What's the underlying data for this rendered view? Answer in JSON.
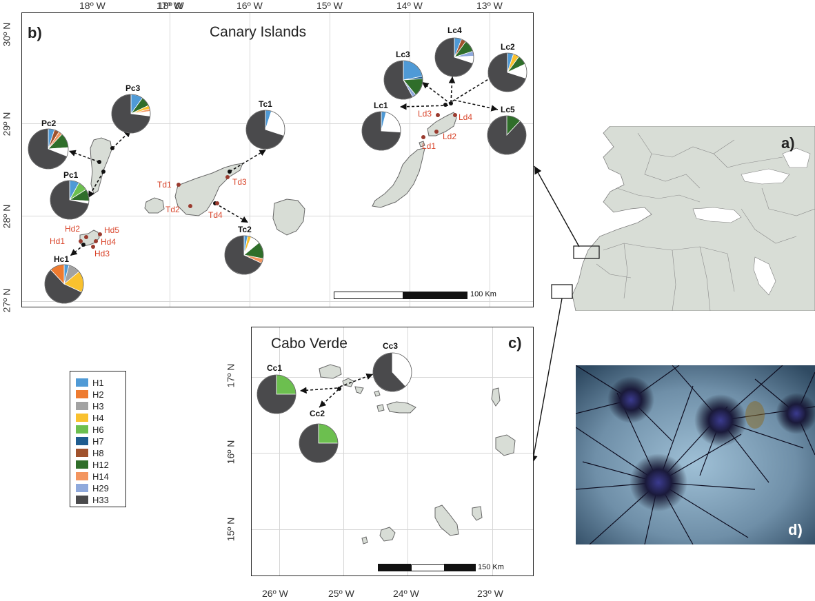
{
  "panels": {
    "b": {
      "letter": "b)",
      "title": "Canary Islands",
      "scale": "100 Km",
      "lon_ticks": [
        "18º W",
        "17º W",
        "16º W",
        "15º W",
        "14º W",
        "13º W"
      ],
      "lat_ticks": [
        "30º N",
        "29º N",
        "28º N",
        "27º N"
      ]
    },
    "c": {
      "letter": "c)",
      "title": "Cabo Verde",
      "scale": "150 Km",
      "lon_ticks": [
        "26º W",
        "25º W",
        "24º W",
        "23º W"
      ],
      "lat_ticks": [
        "17º N",
        "16º N",
        "15º N"
      ]
    },
    "a": {
      "letter": "a)"
    },
    "d": {
      "letter": "d)"
    }
  },
  "haplotypes": [
    {
      "name": "H1",
      "color": "#4f9ad6"
    },
    {
      "name": "H2",
      "color": "#ee7b30"
    },
    {
      "name": "H3",
      "color": "#a2a2a2"
    },
    {
      "name": "H4",
      "color": "#f9c12e"
    },
    {
      "name": "H6",
      "color": "#6cbf4f"
    },
    {
      "name": "H7",
      "color": "#1f5c8f"
    },
    {
      "name": "H8",
      "color": "#a0522d"
    },
    {
      "name": "H12",
      "color": "#2f6e2a"
    },
    {
      "name": "H14",
      "color": "#f3955f"
    },
    {
      "name": "H29",
      "color": "#8fa9dc"
    },
    {
      "name": "H33",
      "color": "#4a4a4c"
    }
  ],
  "pies": {
    "Pc3": {
      "label": "Pc3",
      "slices": [
        {
          "h": "H1",
          "f": 0.1
        },
        {
          "h": "H12",
          "f": 0.08
        },
        {
          "h": "H4",
          "f": 0.03
        },
        {
          "h": "H14",
          "f": 0.02
        },
        {
          "h": "blank",
          "f": 0.04
        },
        {
          "h": "H33",
          "f": 0.73
        }
      ]
    },
    "Pc2": {
      "label": "Pc2",
      "slices": [
        {
          "h": "H1",
          "f": 0.05
        },
        {
          "h": "H8",
          "f": 0.04
        },
        {
          "h": "H14",
          "f": 0.03
        },
        {
          "h": "H12",
          "f": 0.12
        },
        {
          "h": "blank",
          "f": 0.07
        },
        {
          "h": "H33",
          "f": 0.69
        }
      ]
    },
    "Pc1": {
      "label": "Pc1",
      "slices": [
        {
          "h": "H1",
          "f": 0.08
        },
        {
          "h": "H6",
          "f": 0.08
        },
        {
          "h": "H12",
          "f": 0.1
        },
        {
          "h": "blank",
          "f": 0.02
        },
        {
          "h": "H33",
          "f": 0.72
        }
      ]
    },
    "Hc1": {
      "label": "Hc1",
      "slices": [
        {
          "h": "H1",
          "f": 0.04
        },
        {
          "h": "H3",
          "f": 0.1
        },
        {
          "h": "H4",
          "f": 0.18
        },
        {
          "h": "H33",
          "f": 0.56
        },
        {
          "h": "H2",
          "f": 0.12
        }
      ]
    },
    "Tc1": {
      "label": "Tc1",
      "slices": [
        {
          "h": "H1",
          "f": 0.05
        },
        {
          "h": "blank",
          "f": 0.25
        },
        {
          "h": "H33",
          "f": 0.7
        }
      ]
    },
    "Tc2": {
      "label": "Tc2",
      "slices": [
        {
          "h": "H1",
          "f": 0.03
        },
        {
          "h": "H4",
          "f": 0.03
        },
        {
          "h": "blank",
          "f": 0.08
        },
        {
          "h": "H12",
          "f": 0.14
        },
        {
          "h": "H14",
          "f": 0.04
        },
        {
          "h": "H33",
          "f": 0.68
        }
      ]
    },
    "Lc3": {
      "label": "Lc3",
      "slices": [
        {
          "h": "H1",
          "f": 0.22
        },
        {
          "h": "H7",
          "f": 0.02
        },
        {
          "h": "H12",
          "f": 0.15
        },
        {
          "h": "H29",
          "f": 0.03
        },
        {
          "h": "H33",
          "f": 0.58
        }
      ]
    },
    "Lc4": {
      "label": "Lc4",
      "slices": [
        {
          "h": "H1",
          "f": 0.06
        },
        {
          "h": "H8",
          "f": 0.04
        },
        {
          "h": "H12",
          "f": 0.1
        },
        {
          "h": "H29",
          "f": 0.04
        },
        {
          "h": "blank",
          "f": 0.06
        },
        {
          "h": "H33",
          "f": 0.7
        }
      ]
    },
    "Lc2": {
      "label": "Lc2",
      "slices": [
        {
          "h": "H1",
          "f": 0.05
        },
        {
          "h": "H4",
          "f": 0.05
        },
        {
          "h": "H12",
          "f": 0.08
        },
        {
          "h": "blank",
          "f": 0.12
        },
        {
          "h": "H33",
          "f": 0.7
        }
      ]
    },
    "Lc1": {
      "label": "Lc1",
      "slices": [
        {
          "h": "H1",
          "f": 0.04
        },
        {
          "h": "blank",
          "f": 0.22
        },
        {
          "h": "H33",
          "f": 0.74
        }
      ]
    },
    "Lc5": {
      "label": "Lc5",
      "slices": [
        {
          "h": "H12",
          "f": 0.12
        },
        {
          "h": "H33",
          "f": 0.88
        }
      ]
    },
    "Cc1": {
      "label": "Cc1",
      "slices": [
        {
          "h": "H6",
          "f": 0.25
        },
        {
          "h": "H33",
          "f": 0.75
        }
      ]
    },
    "Cc2": {
      "label": "Cc2",
      "slices": [
        {
          "h": "H6",
          "f": 0.25
        },
        {
          "h": "H33",
          "f": 0.75
        }
      ]
    },
    "Cc3": {
      "label": "Cc3",
      "slices": [
        {
          "h": "blank",
          "f": 0.38
        },
        {
          "h": "H33",
          "f": 0.62
        }
      ]
    }
  },
  "sites": {
    "Hd1": "Hd1",
    "Hd2": "Hd2",
    "Hd3": "Hd3",
    "Hd4": "Hd4",
    "Hd5": "Hd5",
    "Td1": "Td1",
    "Td2": "Td2",
    "Td3": "Td3",
    "Td4": "Td4",
    "Ld1": "Ld1",
    "Ld2": "Ld2",
    "Ld3": "Ld3",
    "Ld4": "Ld4"
  }
}
